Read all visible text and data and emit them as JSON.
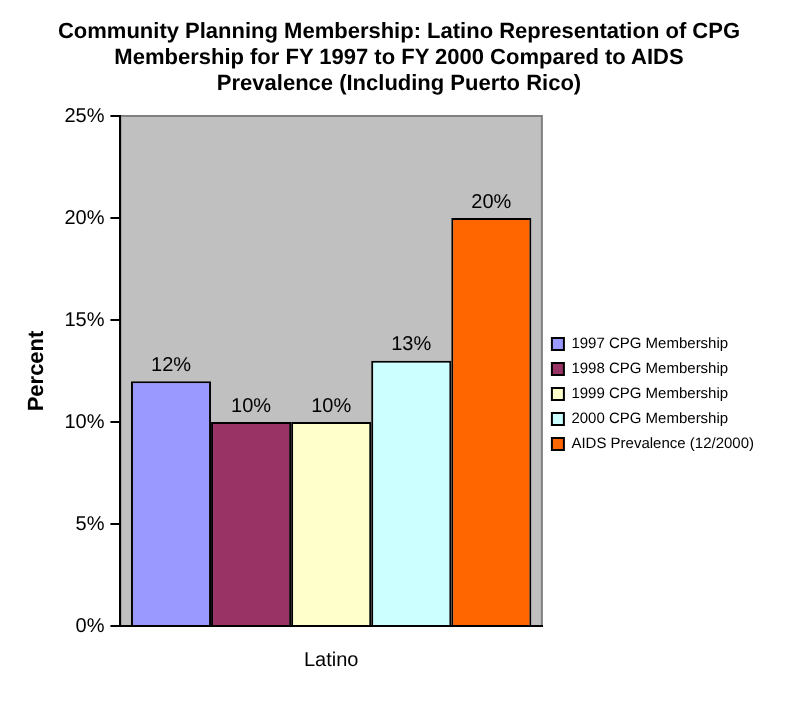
{
  "chart_data": {
    "type": "bar",
    "title": "Community Planning Membership:  Latino Representation of CPG Membership for FY 1997 to FY 2000 Compared to AIDS Prevalence (Including Puerto Rico)",
    "ylabel": "Percent",
    "categories": [
      "Latino"
    ],
    "series": [
      {
        "name": "1997 CPG Membership",
        "color": "#9999ff",
        "values": [
          12
        ],
        "value_labels": [
          "12%"
        ]
      },
      {
        "name": "1998 CPG Membership",
        "color": "#993366",
        "values": [
          10
        ],
        "value_labels": [
          "10%"
        ]
      },
      {
        "name": "1999 CPG Membership",
        "color": "#ffffcc",
        "values": [
          10
        ],
        "value_labels": [
          "10%"
        ]
      },
      {
        "name": "2000 CPG Membership",
        "color": "#ccffff",
        "values": [
          13
        ],
        "value_labels": [
          "13%"
        ]
      },
      {
        "name": "AIDS Prevalence (12/2000)",
        "color": "#ff6600",
        "values": [
          20
        ],
        "value_labels": [
          "20%"
        ]
      }
    ],
    "ylim": [
      0,
      25
    ],
    "yticks": [
      {
        "value": 0,
        "label": "0%"
      },
      {
        "value": 5,
        "label": "5%"
      },
      {
        "value": 10,
        "label": "10%"
      },
      {
        "value": 15,
        "label": "15%"
      },
      {
        "value": 20,
        "label": "20%"
      },
      {
        "value": 25,
        "label": "25%"
      }
    ],
    "grid": false,
    "legend": "right"
  }
}
